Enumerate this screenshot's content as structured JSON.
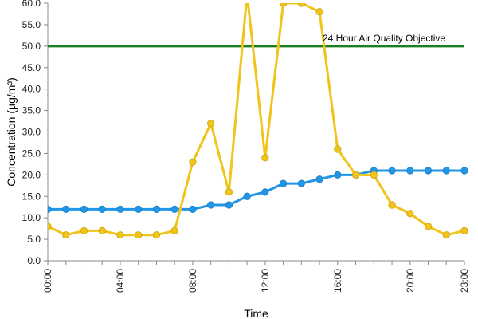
{
  "chart_data": {
    "type": "line",
    "xlabel": "Time",
    "ylabel": "Concentration (µg/m³)",
    "ylim": [
      0,
      60
    ],
    "y_ticks": [
      "0.0",
      "5.0",
      "10.0",
      "15.0",
      "20.0",
      "25.0",
      "30.0",
      "35.0",
      "40.0",
      "45.0",
      "50.0",
      "55.0",
      "60.0"
    ],
    "x_range": [
      0,
      23
    ],
    "x_tick_hours": [
      0,
      4,
      8,
      12,
      16,
      20,
      23
    ],
    "x_tick_labels": [
      "00:00",
      "04:00",
      "08:00",
      "12:00",
      "16:00",
      "20:00",
      "23:00"
    ],
    "x": [
      0,
      1,
      2,
      3,
      4,
      5,
      6,
      7,
      8,
      9,
      10,
      11,
      12,
      13,
      14,
      15,
      16,
      17,
      18,
      19,
      20,
      21,
      22,
      23
    ],
    "series": [
      {
        "color": "#2196e6",
        "marker": "circle",
        "values": [
          12,
          12,
          12,
          12,
          12,
          12,
          12,
          12,
          12,
          13,
          13,
          15,
          16,
          18,
          18,
          19,
          20,
          20,
          21,
          21,
          21,
          21,
          21,
          21
        ]
      },
      {
        "color": "#f0c419",
        "marker": "circle",
        "values": [
          8,
          6,
          7,
          7,
          6,
          6,
          6,
          7,
          23,
          32,
          16,
          62,
          24,
          60,
          60,
          58,
          26,
          20,
          20,
          13,
          11,
          8,
          6,
          7
        ]
      }
    ],
    "reference_line": {
      "label": "24 Hour Air Quality Objective",
      "value": 50,
      "color": "#1e7d1e"
    },
    "grid": false,
    "legend": "none"
  }
}
